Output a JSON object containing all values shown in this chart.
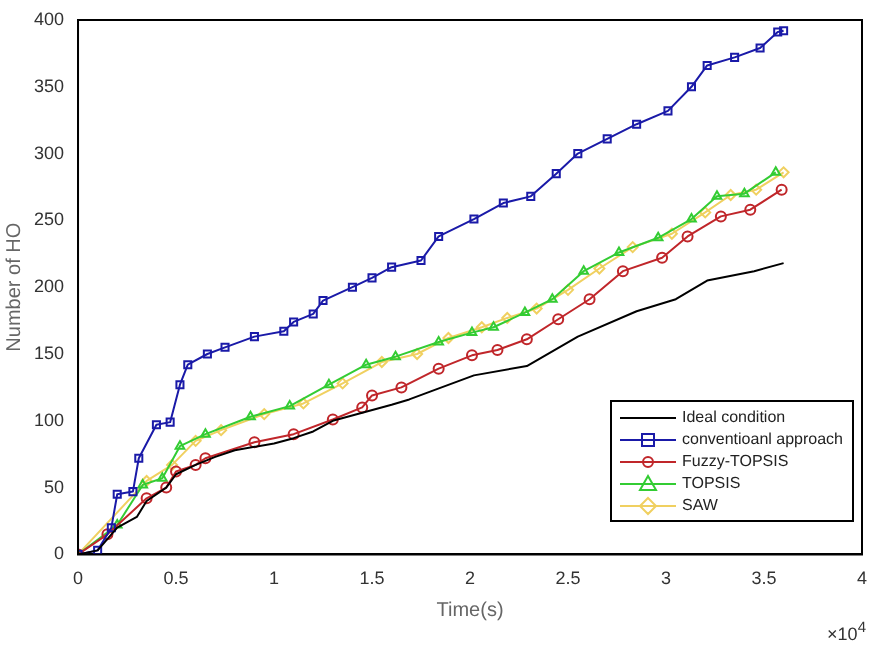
{
  "chart_data": {
    "type": "line",
    "xlabel": "Time(s)",
    "ylabel": "Number of HO",
    "xlim": [
      0,
      4
    ],
    "xticks": [
      0,
      0.5,
      1,
      1.5,
      2,
      2.5,
      3,
      3.5,
      4
    ],
    "ylim": [
      0,
      400
    ],
    "yticks": [
      0,
      50,
      100,
      150,
      200,
      250,
      300,
      350,
      400
    ],
    "grid": false,
    "legend": "bottom right",
    "annotations": [
      "×10$^{4}$"
    ],
    "series": [
      {
        "name": "Ideal condition",
        "color": "#000000",
        "marker": "none",
        "x": [
          0,
          0.1,
          0.2,
          0.3,
          0.35,
          0.45,
          0.5,
          0.6,
          0.7,
          0.8,
          1.0,
          1.1,
          1.2,
          1.3,
          1.45,
          1.6,
          1.69,
          1.8,
          2.02,
          2.29,
          2.55,
          2.85,
          3.05,
          3.21,
          3.45,
          3.6
        ],
        "values": [
          0,
          3,
          20,
          28,
          40,
          50,
          60,
          67,
          73,
          78,
          83,
          87,
          92,
          100,
          106,
          112,
          116,
          122,
          134,
          141,
          163,
          182,
          191,
          205,
          212,
          218
        ]
      },
      {
        "name": "conventioanl approach",
        "color": "#1a1aa8",
        "marker": "square",
        "x": [
          0,
          0.1,
          0.17,
          0.2,
          0.28,
          0.31,
          0.4,
          0.47,
          0.52,
          0.56,
          0.66,
          0.75,
          0.9,
          1.05,
          1.1,
          1.2,
          1.25,
          1.4,
          1.5,
          1.6,
          1.75,
          1.84,
          2.02,
          2.17,
          2.31,
          2.44,
          2.55,
          2.7,
          2.85,
          3.01,
          3.13,
          3.21,
          3.35,
          3.48,
          3.57,
          3.6
        ],
        "values": [
          0,
          3,
          20,
          45,
          47,
          72,
          97,
          99,
          127,
          142,
          150,
          155,
          163,
          167,
          174,
          180,
          190,
          200,
          207,
          215,
          220,
          238,
          251,
          263,
          268,
          285,
          300,
          311,
          322,
          332,
          350,
          366,
          372,
          379,
          391,
          392
        ]
      },
      {
        "name": "Fuzzy-TOPSIS",
        "color": "#c0262a",
        "marker": "circle",
        "x": [
          0,
          0.15,
          0.35,
          0.45,
          0.5,
          0.6,
          0.65,
          0.9,
          1.1,
          1.3,
          1.45,
          1.5,
          1.65,
          1.84,
          2.01,
          2.14,
          2.29,
          2.45,
          2.61,
          2.78,
          2.98,
          3.11,
          3.28,
          3.43,
          3.59
        ],
        "values": [
          0,
          15,
          42,
          50,
          62,
          67,
          72,
          84,
          90,
          101,
          110,
          119,
          125,
          139,
          149,
          153,
          161,
          176,
          191,
          212,
          222,
          238,
          253,
          258,
          273
        ]
      },
      {
        "name": "TOPSIS",
        "color": "#33cc33",
        "marker": "triangle",
        "x": [
          0,
          0.2,
          0.33,
          0.43,
          0.52,
          0.65,
          0.88,
          1.08,
          1.28,
          1.47,
          1.62,
          1.84,
          2.01,
          2.12,
          2.28,
          2.42,
          2.58,
          2.76,
          2.96,
          3.13,
          3.26,
          3.4,
          3.56
        ],
        "values": [
          0,
          22,
          52,
          57,
          81,
          90,
          103,
          111,
          127,
          142,
          148,
          159,
          166,
          170,
          181,
          191,
          212,
          226,
          237,
          251,
          268,
          270,
          286
        ]
      },
      {
        "name": "SAW",
        "color": "#f0d060",
        "marker": "diamond",
        "x": [
          0,
          0.35,
          0.48,
          0.6,
          0.73,
          0.95,
          1.15,
          1.35,
          1.55,
          1.73,
          1.89,
          2.06,
          2.19,
          2.34,
          2.5,
          2.66,
          2.83,
          3.03,
          3.2,
          3.33,
          3.46,
          3.6
        ],
        "values": [
          0,
          55,
          67,
          85,
          93,
          105,
          113,
          128,
          144,
          150,
          162,
          170,
          177,
          184,
          198,
          214,
          230,
          240,
          256,
          269,
          273,
          286
        ]
      }
    ]
  }
}
